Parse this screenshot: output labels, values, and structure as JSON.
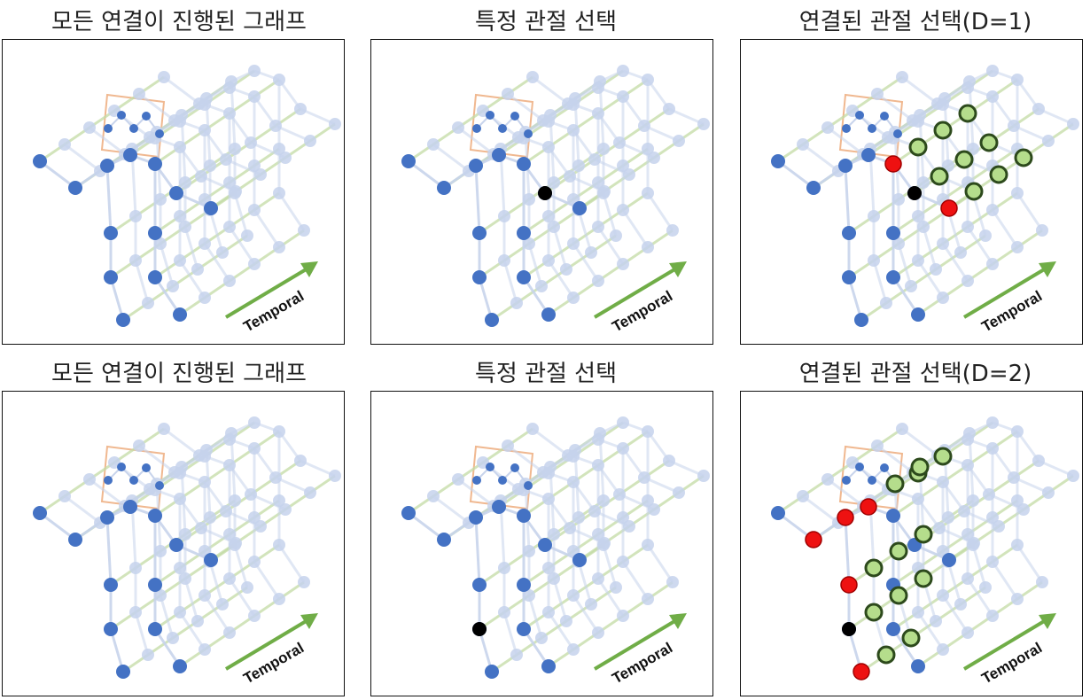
{
  "titles": {
    "top_left": "모든 연결이 진행된 그래프",
    "top_middle": "특정 관절 선택",
    "top_right": "연결된 관절 선택(D=1)",
    "bottom_left": "모든 연결이 진행된 그래프",
    "bottom_middle": "특정 관절 선택",
    "bottom_right": "연결된 관절 선택(D=2)"
  },
  "arrow_label": "Temporal",
  "colors": {
    "joint": "#4472c4",
    "joint_faded": "#c5d2ec",
    "selected_joint": "#000000",
    "spatial_neighbor": "#ee1111",
    "temporal_neighbor_fill": "#b5dd8c",
    "temporal_neighbor_stroke": "#2d4a1c",
    "temporal_edge": "#c3dba5",
    "temporal_arrow": "#70ad47",
    "focus_box": "#f0b890"
  }
}
